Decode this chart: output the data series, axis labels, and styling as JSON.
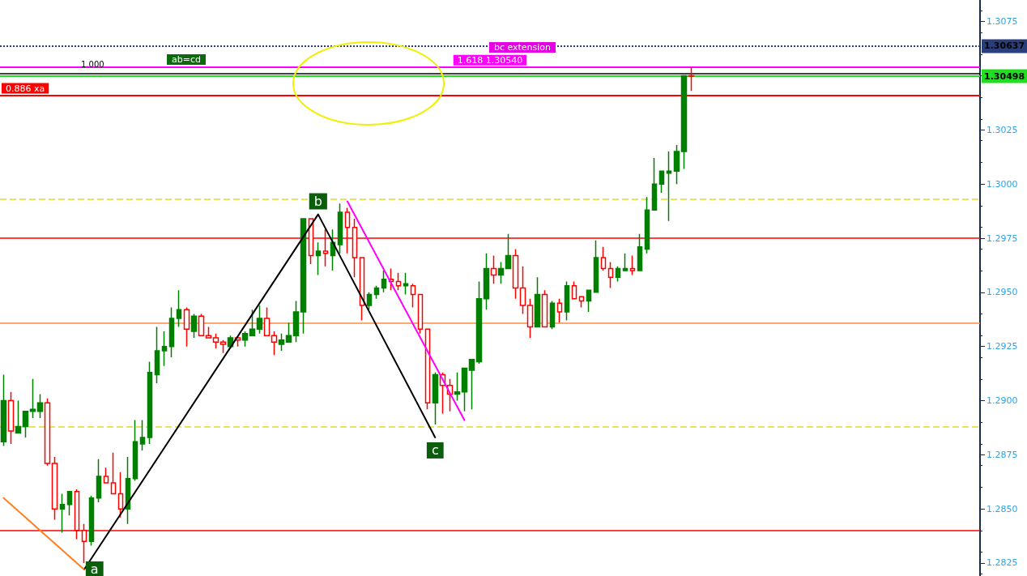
{
  "chart_data": {
    "type": "candlestick",
    "categories": [
      null,
      null,
      null,
      null,
      null,
      null,
      null,
      null,
      null,
      null,
      null,
      null,
      null,
      null,
      null,
      null,
      null,
      null,
      null,
      null,
      null,
      null,
      null,
      null,
      null,
      null,
      null,
      null,
      null,
      null,
      null,
      null,
      null,
      null,
      null,
      null,
      null,
      null,
      null,
      null,
      null,
      null,
      null,
      null,
      null,
      null,
      null,
      null,
      null,
      null,
      null,
      null,
      null,
      null,
      null,
      null,
      null,
      null,
      null,
      null,
      null,
      null,
      null,
      null,
      null,
      null,
      null,
      null,
      null,
      null,
      null,
      null,
      null,
      null,
      null,
      null,
      null,
      null,
      null,
      null,
      null,
      null,
      null,
      null,
      null,
      null,
      null,
      null,
      null,
      null,
      null,
      null,
      null,
      null,
      null,
      null,
      null,
      null,
      null,
      null,
      null,
      null,
      null,
      null,
      null,
      null,
      null,
      null,
      null,
      null,
      null,
      null,
      null,
      null,
      null,
      null,
      null,
      null,
      null,
      null,
      null,
      null,
      null,
      null,
      null,
      null,
      null,
      null,
      null,
      null,
      null,
      null,
      null,
      null
    ],
    "ohlc": [
      [
        1.2881,
        1.2912,
        1.2879,
        1.29
      ],
      [
        1.29,
        1.2904,
        1.288,
        1.2886
      ],
      [
        1.2885,
        1.29,
        1.2885,
        1.2888
      ],
      [
        1.2888,
        1.2895,
        1.2883,
        1.2895
      ],
      [
        1.2895,
        1.291,
        1.2892,
        1.2896
      ],
      [
        1.2895,
        1.2903,
        1.2892,
        1.2899
      ],
      [
        1.2899,
        1.2901,
        1.287,
        1.2871
      ],
      [
        1.2871,
        1.2874,
        1.2845,
        1.285
      ],
      [
        1.285,
        1.2857,
        1.2839,
        1.2852
      ],
      [
        1.2852,
        1.2858,
        1.2847,
        1.2858
      ],
      [
        1.2858,
        1.2859,
        1.2836,
        1.284
      ],
      [
        1.284,
        1.2843,
        1.2825,
        1.2835
      ],
      [
        1.2835,
        1.2856,
        1.2833,
        1.2855
      ],
      [
        1.2855,
        1.2873,
        1.2853,
        1.2865
      ],
      [
        1.2865,
        1.2869,
        1.2862,
        1.2862
      ],
      [
        1.2862,
        1.2876,
        1.2857,
        1.2857
      ],
      [
        1.2857,
        1.2867,
        1.2846,
        1.285
      ],
      [
        1.285,
        1.2874,
        1.2843,
        1.2864
      ],
      [
        1.2864,
        1.2891,
        1.2863,
        1.2881
      ],
      [
        1.288,
        1.2891,
        1.2877,
        1.2883
      ],
      [
        1.2883,
        1.2918,
        1.288,
        1.2913
      ],
      [
        1.2912,
        1.2934,
        1.2908,
        1.2923
      ],
      [
        1.2923,
        1.2932,
        1.2916,
        1.2925
      ],
      [
        1.2925,
        1.2943,
        1.292,
        1.2938
      ],
      [
        1.2938,
        1.2951,
        1.2934,
        1.2942
      ],
      [
        1.2942,
        1.2943,
        1.2925,
        1.2933
      ],
      [
        1.2932,
        1.294,
        1.2929,
        1.2939
      ],
      [
        1.2939,
        1.294,
        1.293,
        1.293
      ],
      [
        1.293,
        1.2934,
        1.2929,
        1.2929
      ],
      [
        1.2929,
        1.2931,
        1.2924,
        1.2927
      ],
      [
        1.2927,
        1.2928,
        1.2922,
        1.2926
      ],
      [
        1.2925,
        1.293,
        1.2924,
        1.2929
      ],
      [
        1.2929,
        1.2929,
        1.2925,
        1.2928
      ],
      [
        1.2928,
        1.2932,
        1.2925,
        1.2931
      ],
      [
        1.293,
        1.2942,
        1.293,
        1.2933
      ],
      [
        1.2933,
        1.2944,
        1.2931,
        1.2938
      ],
      [
        1.2938,
        1.2943,
        1.293,
        1.293
      ],
      [
        1.293,
        1.2932,
        1.2921,
        1.2927
      ],
      [
        1.2926,
        1.2931,
        1.2923,
        1.2928
      ],
      [
        1.2927,
        1.2936,
        1.2927,
        1.293
      ],
      [
        1.293,
        1.2946,
        1.2927,
        1.2941
      ],
      [
        1.2941,
        1.2984,
        1.2931,
        1.2984
      ],
      [
        1.2984,
        1.2984,
        1.2963,
        1.2967
      ],
      [
        1.2967,
        1.2973,
        1.2958,
        1.2969
      ],
      [
        1.2969,
        1.2979,
        1.2962,
        1.2968
      ],
      [
        1.2967,
        1.2979,
        1.296,
        1.2973
      ],
      [
        1.2972,
        1.2991,
        1.2968,
        1.2987
      ],
      [
        1.2987,
        1.2989,
        1.2968,
        1.298
      ],
      [
        1.298,
        1.2984,
        1.2957,
        1.2966
      ],
      [
        1.2966,
        1.2966,
        1.2937,
        1.2944
      ],
      [
        1.2944,
        1.295,
        1.2942,
        1.2949
      ],
      [
        1.2949,
        1.2953,
        1.2947,
        1.2952
      ],
      [
        1.2952,
        1.296,
        1.295,
        1.2956
      ],
      [
        1.2956,
        1.2961,
        1.2951,
        1.2955
      ],
      [
        1.2955,
        1.2959,
        1.2951,
        1.2953
      ],
      [
        1.2953,
        1.2959,
        1.2949,
        1.2954
      ],
      [
        1.2953,
        1.2954,
        1.2943,
        1.2949
      ],
      [
        1.2949,
        1.2949,
        1.2931,
        1.2933
      ],
      [
        1.2933,
        1.2933,
        1.2896,
        1.2899
      ],
      [
        1.2899,
        1.2913,
        1.2889,
        1.2912
      ],
      [
        1.2912,
        1.2913,
        1.2894,
        1.2907
      ],
      [
        1.2907,
        1.291,
        1.2895,
        1.2903
      ],
      [
        1.2903,
        1.2913,
        1.29,
        1.2904
      ],
      [
        1.2904,
        1.2915,
        1.2895,
        1.2915
      ],
      [
        1.2914,
        1.2919,
        1.2896,
        1.2919
      ],
      [
        1.2918,
        1.2955,
        1.2917,
        1.2947
      ],
      [
        1.2947,
        1.2968,
        1.2942,
        1.2961
      ],
      [
        1.2961,
        1.2967,
        1.2954,
        1.2958
      ],
      [
        1.2958,
        1.2964,
        1.2954,
        1.2961
      ],
      [
        1.2961,
        1.2977,
        1.2961,
        1.2967
      ],
      [
        1.2967,
        1.297,
        1.2947,
        1.2952
      ],
      [
        1.2952,
        1.2962,
        1.294,
        1.2944
      ],
      [
        1.2944,
        1.2947,
        1.2929,
        1.2934
      ],
      [
        1.2934,
        1.2957,
        1.2934,
        1.2949
      ],
      [
        1.2949,
        1.2951,
        1.2934,
        1.2934
      ],
      [
        1.2934,
        1.2946,
        1.2933,
        1.2945
      ],
      [
        1.2945,
        1.2947,
        1.2936,
        1.2941
      ],
      [
        1.2941,
        1.2955,
        1.2937,
        1.2953
      ],
      [
        1.2953,
        1.2955,
        1.2947,
        1.2947
      ],
      [
        1.2948,
        1.2948,
        1.2943,
        1.2946
      ],
      [
        1.2946,
        1.2951,
        1.2941,
        1.2951
      ],
      [
        1.295,
        1.2974,
        1.295,
        1.2966
      ],
      [
        1.2966,
        1.2971,
        1.296,
        1.2961
      ],
      [
        1.2961,
        1.2964,
        1.2952,
        1.2957
      ],
      [
        1.2957,
        1.2962,
        1.2955,
        1.2961
      ],
      [
        1.296,
        1.2968,
        1.296,
        1.2961
      ],
      [
        1.2961,
        1.2967,
        1.2958,
        1.296
      ],
      [
        1.296,
        1.2977,
        1.296,
        1.2971
      ],
      [
        1.297,
        1.2994,
        1.2968,
        1.2988
      ],
      [
        1.2988,
        1.3012,
        1.2988,
        1.3
      ],
      [
        1.3,
        1.3006,
        1.2996,
        1.3006
      ],
      [
        1.3005,
        1.3015,
        1.2983,
        1.3006
      ],
      [
        1.3006,
        1.3018,
        1.3,
        1.3015
      ],
      [
        1.3015,
        1.305,
        1.3007,
        1.305
      ],
      [
        1.305,
        1.3054,
        1.3043,
        1.30498
      ],
      null,
      null,
      null,
      null,
      null,
      null,
      null,
      null,
      null,
      null,
      null,
      null,
      null,
      null,
      null,
      null,
      null,
      null,
      null,
      null,
      null,
      null,
      null,
      null,
      null,
      null,
      null,
      null,
      null,
      null,
      null,
      null,
      null,
      null,
      null,
      null,
      null,
      null,
      null
    ],
    "series": [
      {
        "type": "line",
        "color": "#000000",
        "value_labels": [
          null,
          null,
          null,
          null,
          null,
          null,
          null,
          null,
          null,
          null,
          null,
          "a",
          null,
          null,
          null,
          null,
          null,
          null,
          null,
          null,
          null,
          null,
          null,
          null,
          null,
          null,
          null,
          null,
          null,
          null,
          null,
          null,
          null,
          null,
          null,
          null,
          null,
          null,
          null,
          null,
          null,
          null,
          null,
          "b",
          null,
          null,
          null,
          null,
          null,
          null,
          null,
          null,
          null,
          null,
          null,
          null,
          null,
          null,
          null,
          "c",
          null,
          null,
          null,
          null,
          null,
          null,
          null,
          null,
          null,
          null,
          null,
          null,
          null,
          null,
          null,
          null,
          null,
          null,
          null,
          null,
          null,
          null,
          null,
          null,
          null,
          null,
          null,
          null,
          null,
          null,
          null,
          null,
          null,
          null,
          null,
          null,
          null,
          null,
          null,
          null,
          null,
          null,
          null,
          null,
          null,
          null,
          null,
          null,
          null,
          null,
          null,
          null,
          null,
          null,
          null,
          null,
          null,
          null,
          null,
          null,
          null,
          null,
          null,
          null,
          null,
          null,
          null,
          null,
          null,
          null,
          null,
          null,
          null,
          null
        ],
        "values": [
          null,
          null,
          null,
          null,
          null,
          null,
          null,
          null,
          null,
          null,
          null,
          1.2822,
          null,
          null,
          null,
          null,
          null,
          null,
          null,
          null,
          null,
          null,
          null,
          null,
          null,
          null,
          null,
          null,
          null,
          null,
          null,
          null,
          null,
          null,
          null,
          null,
          null,
          null,
          null,
          null,
          null,
          null,
          null,
          1.2986,
          null,
          null,
          null,
          null,
          null,
          null,
          null,
          null,
          null,
          null,
          null,
          null,
          null,
          null,
          null,
          1.2883,
          null,
          null,
          null,
          null,
          null,
          null,
          null,
          null,
          null,
          null,
          null,
          null,
          null,
          null,
          null,
          null,
          null,
          null,
          null,
          null,
          null,
          null,
          null,
          null,
          null,
          null,
          null,
          null,
          null,
          null,
          null,
          null,
          null,
          null,
          null,
          null,
          null,
          null,
          null,
          null,
          null,
          null,
          null,
          null,
          null,
          null,
          null,
          null,
          null,
          null,
          null,
          null,
          null,
          null,
          null,
          null,
          null,
          null,
          null,
          null,
          null,
          null,
          null,
          null,
          null,
          null,
          null,
          null,
          null,
          null,
          null,
          null,
          null,
          null
        ]
      },
      {
        "type": "line",
        "color": "#ff7f1e",
        "values": [
          1.2855,
          null,
          null,
          null,
          null,
          null,
          null,
          null,
          null,
          null,
          null,
          1.2822,
          null,
          null,
          null,
          null,
          null,
          null,
          null,
          null,
          null,
          null,
          null,
          null,
          null,
          null,
          null,
          null,
          null,
          null,
          null,
          null,
          null,
          null,
          null,
          null,
          null,
          null,
          null,
          null,
          null,
          null,
          null,
          null,
          null,
          null,
          null,
          null,
          null,
          null,
          null,
          null,
          null,
          null,
          null,
          null,
          null,
          null,
          null,
          null,
          null,
          null,
          null,
          null,
          null,
          null,
          null,
          null,
          null,
          null,
          null,
          null,
          null,
          null,
          null,
          null,
          null,
          null,
          null,
          null,
          null,
          null,
          null,
          null,
          null,
          null,
          null,
          null,
          null,
          null,
          null,
          null,
          null,
          null,
          null,
          null,
          null,
          null,
          null,
          null,
          null,
          null,
          null,
          null,
          null,
          null,
          null,
          null,
          null,
          null,
          null,
          null,
          null,
          null,
          null,
          null,
          null,
          null,
          null,
          null,
          null,
          null,
          null,
          null,
          null,
          null,
          null,
          null,
          null,
          null,
          null,
          null,
          null,
          null
        ]
      },
      {
        "type": "line",
        "color": "#ff00ff",
        "values": [
          null,
          null,
          null,
          null,
          null,
          null,
          null,
          null,
          null,
          null,
          null,
          null,
          null,
          null,
          null,
          null,
          null,
          null,
          null,
          null,
          null,
          null,
          null,
          null,
          null,
          null,
          null,
          null,
          null,
          null,
          null,
          null,
          null,
          null,
          null,
          null,
          null,
          null,
          null,
          null,
          null,
          null,
          null,
          null,
          null,
          null,
          null,
          1.2992,
          null,
          null,
          null,
          null,
          null,
          null,
          null,
          null,
          null,
          null,
          null,
          null,
          null,
          null,
          null,
          1.2891,
          null,
          null,
          null,
          null,
          null,
          null,
          null,
          null,
          null,
          null,
          null,
          null,
          null,
          null,
          null,
          null,
          null,
          null,
          null,
          null,
          null,
          null,
          null,
          null,
          null,
          null,
          null,
          null,
          null,
          null,
          null,
          null,
          null,
          null,
          null,
          null,
          null,
          null,
          null,
          null,
          null,
          null,
          null,
          null,
          null,
          null,
          null,
          null,
          null,
          null,
          null,
          null,
          null,
          null,
          null,
          null,
          null,
          null,
          null,
          null,
          null,
          null,
          null,
          null,
          null,
          null,
          null,
          null,
          null,
          null
        ]
      }
    ],
    "ylim": [
      1.2819,
      1.3085
    ],
    "yticks": [
      1.2825,
      {
        "value": 1.285,
        "label": "1.2850"
      },
      1.2875,
      {
        "value": 1.29,
        "label": "1.2900"
      },
      1.2925,
      {
        "value": 1.295,
        "label": "1.2950"
      },
      1.2975,
      {
        "value": 1.3,
        "label": "1.3000"
      },
      1.3025,
      {
        "value": 1.305,
        "label": null
      },
      1.3075
    ],
    "ref_lines": [
      {
        "axis": "y",
        "value": 1.30637,
        "label": "1.30637",
        "color": "#2a3f7a",
        "line_style": "dotted"
      },
      {
        "axis": "y",
        "value": 1.3051,
        "color": "#000000"
      },
      {
        "axis": "y",
        "value": 1.3054,
        "label": "1.618 1.30540",
        "color": "#ff00ff"
      },
      {
        "axis": "y",
        "value": 1.30498,
        "label": "1.30498",
        "color": "#22dd22"
      },
      {
        "axis": "y",
        "value": 1.3041,
        "label": "0.886 xa",
        "color": "#ff0000"
      },
      {
        "axis": "y",
        "value": 1.2993,
        "color": "#e6e65c",
        "line_style": "dashed"
      },
      {
        "axis": "y",
        "value": 1.2975,
        "color": "#ff0000"
      },
      {
        "axis": "y",
        "value": 1.2936,
        "color": "#ff8c40"
      },
      {
        "axis": "y",
        "value": 1.2888,
        "color": "#e6e65c",
        "line_style": "dashed"
      },
      {
        "axis": "y",
        "value": 1.284,
        "color": "#ff0000"
      }
    ],
    "annotations": [
      "1.000",
      "ab=cd",
      "bc extension"
    ],
    "grid": false,
    "marker": "none",
    "tick_labels": "y"
  }
}
